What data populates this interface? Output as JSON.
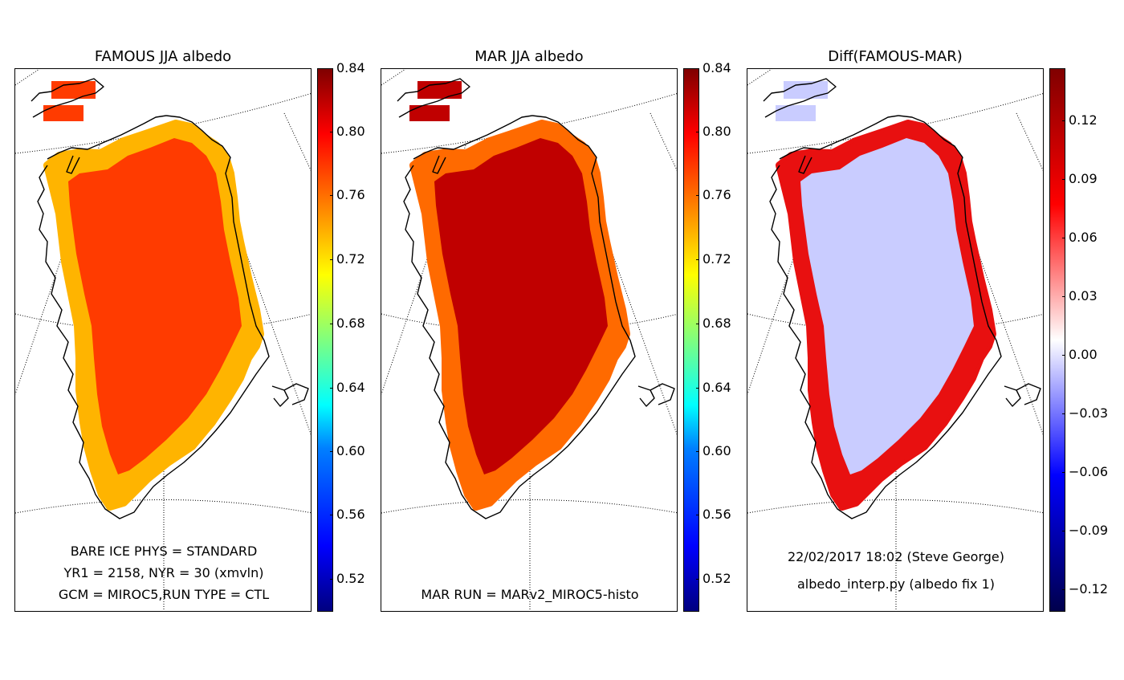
{
  "panels": [
    {
      "title": "FAMOUS JJA albedo",
      "notes": [
        "BARE ICE PHYS = STANDARD",
        "YR1 = 2158, NYR = 30 (xmvln)",
        "GCM = MIROC5,RUN TYPE = CTL"
      ],
      "colormap": "jet",
      "colorbar_ticks": [
        "0.84",
        "0.80",
        "0.76",
        "0.72",
        "0.68",
        "0.64",
        "0.60",
        "0.56",
        "0.52"
      ],
      "interior_color": "#ff3b00",
      "edge_color": "#ffb400",
      "margin_color": "#1ea8ff"
    },
    {
      "title": "MAR JJA albedo",
      "notes": [
        "MAR RUN = MARv2_MIROC5-histo"
      ],
      "colormap": "jet",
      "colorbar_ticks": [
        "0.84",
        "0.80",
        "0.76",
        "0.72",
        "0.68",
        "0.64",
        "0.60",
        "0.56",
        "0.52"
      ],
      "interior_color": "#c00000",
      "edge_color": "#ff6a00",
      "margin_color": "#0050ff"
    },
    {
      "title": "Diff(FAMOUS-MAR)",
      "notes": [
        "22/02/2017 18:02 (Steve George)",
        "albedo_interp.py (albedo fix 1)"
      ],
      "colormap": "seismic",
      "colorbar_ticks": [
        "0.12",
        "0.09",
        "0.06",
        "0.03",
        "0.00",
        "−0.03",
        "−0.06",
        "−0.09",
        "−0.12"
      ],
      "interior_color": "#c9ccff",
      "edge_color": "#e81010",
      "margin_color": "#1a1aff"
    }
  ]
}
